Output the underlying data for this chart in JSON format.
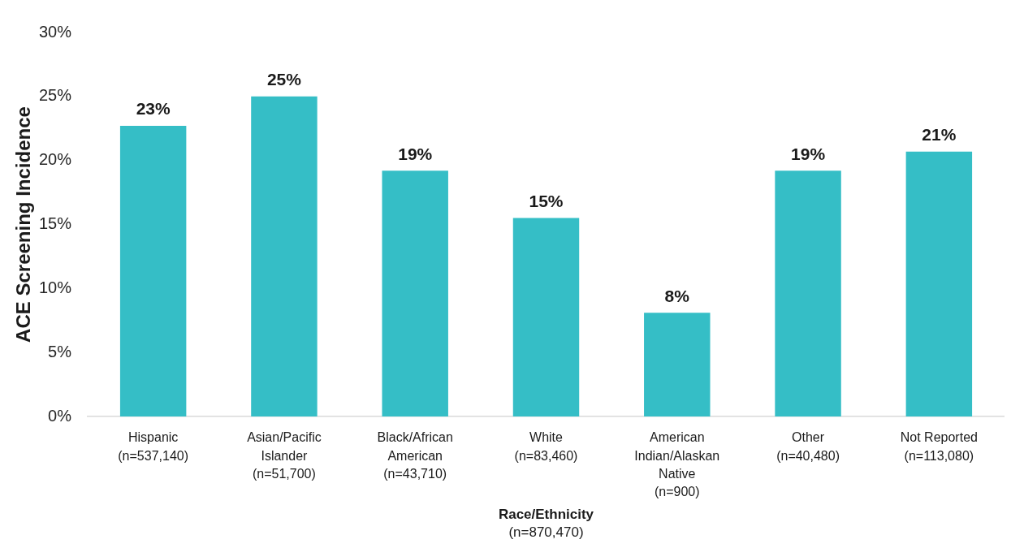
{
  "chart_data": {
    "type": "bar",
    "categories": [
      "Hispanic (n=537,140)",
      "Asian/Pacific Islander (n=51,700)",
      "Black/African American (n=43,710)",
      "White (n=83,460)",
      "American Indian/Alaskan Native (n=900)",
      "Other (n=40,480)",
      "Not Reported (n=113,080)"
    ],
    "values": [
      22.7,
      25.0,
      19.2,
      15.5,
      8.1,
      19.2,
      20.7
    ],
    "value_labels": [
      "23%",
      "25%",
      "19%",
      "15%",
      "8%",
      "19%",
      "21%"
    ],
    "color": "#35bec6",
    "ylim": [
      0,
      30
    ],
    "yticks": [
      {
        "value": 0,
        "label": "0%"
      },
      {
        "value": 5,
        "label": "5%"
      },
      {
        "value": 10,
        "label": "10%"
      },
      {
        "value": 15,
        "label": "15%"
      },
      {
        "value": 20,
        "label": "20%"
      },
      {
        "value": 25,
        "label": "25%"
      },
      {
        "value": 30,
        "label": "30%"
      }
    ],
    "ylabel": "ACE Screening Incidence",
    "xlabel": "Race/Ethnicity",
    "annotations": [
      "(n=870,470)"
    ],
    "grid": false
  }
}
